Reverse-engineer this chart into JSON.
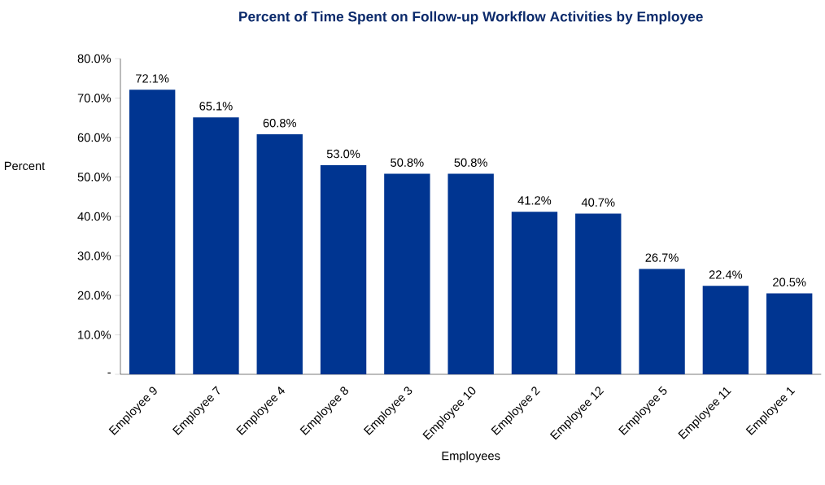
{
  "chart_data": {
    "type": "bar",
    "title": "Percent of Time Spent on Follow-up Workflow Activities by Employee",
    "xlabel": "Employees",
    "ylabel": "Percent",
    "categories": [
      "Employee 9",
      "Employee 7",
      "Employee 4",
      "Employee 8",
      "Employee 3",
      "Employee 10",
      "Employee 2",
      "Employee 12",
      "Employee 5",
      "Employee 11",
      "Employee 1"
    ],
    "values": [
      72.1,
      65.1,
      60.8,
      53.0,
      50.8,
      50.8,
      41.2,
      40.7,
      26.7,
      22.4,
      20.5
    ],
    "value_labels": [
      "72.1%",
      "65.1%",
      "60.8%",
      "53.0%",
      "50.8%",
      "50.8%",
      "41.2%",
      "40.7%",
      "26.7%",
      "22.4%",
      "20.5%"
    ],
    "color": "#003591",
    "ylim": [
      0,
      80
    ],
    "yticks": [
      {
        "value": 0,
        "label": "-"
      },
      {
        "value": 10,
        "label": "10.0%"
      },
      {
        "value": 20,
        "label": "20.0%"
      },
      {
        "value": 30,
        "label": "30.0%"
      },
      {
        "value": 40,
        "label": "40.0%"
      },
      {
        "value": 50,
        "label": "50.0%"
      },
      {
        "value": 60,
        "label": "60.0%"
      },
      {
        "value": 70,
        "label": "70.0%"
      },
      {
        "value": 80,
        "label": "80.0%"
      }
    ],
    "grid": false
  }
}
